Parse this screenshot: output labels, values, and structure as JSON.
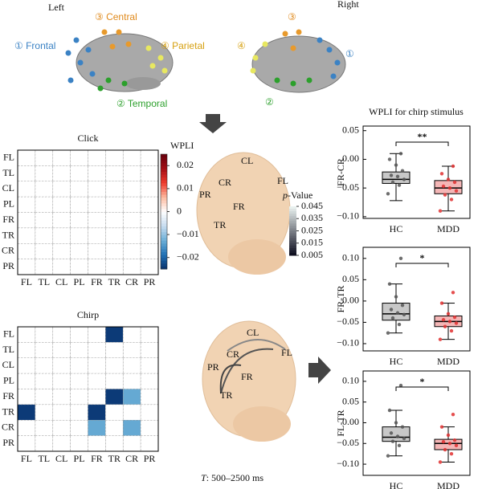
{
  "brain": {
    "left_label": "Left",
    "right_label": "Right",
    "frontal": "① Frontal",
    "temporal": "② Temporal",
    "central": "③ Central",
    "parietal": "④ Parietal",
    "right_markers": [
      "③",
      "④",
      "①",
      "②"
    ]
  },
  "heatmaps": {
    "regions": [
      "FL",
      "TL",
      "CL",
      "PL",
      "FR",
      "TR",
      "CR",
      "PR"
    ],
    "colorbar_title": "WPLI",
    "clim": [
      -0.025,
      0.025
    ],
    "colors": [
      "#08306b",
      "#2171b5",
      "#6baed6",
      "#c6dbef",
      "#ffffff",
      "#fcbba1",
      "#ef3b2c",
      "#a50f15",
      "#67000d"
    ],
    "ticks": [
      0.02,
      0.01,
      0,
      {
        "value": -0.01,
        "label": "−0.01"
      },
      {
        "value": -0.02,
        "label": "−0.02"
      }
    ],
    "panels": [
      {
        "title": "Click",
        "matrix": [
          [
            0,
            0,
            0,
            0,
            0,
            0,
            0,
            0
          ],
          [
            0,
            0,
            0,
            0,
            0,
            0,
            0,
            0
          ],
          [
            0,
            0,
            0,
            0,
            0,
            0,
            0,
            0
          ],
          [
            0,
            0,
            0,
            0,
            0,
            0,
            0,
            0
          ],
          [
            0,
            0,
            0,
            0,
            0,
            0,
            0,
            0
          ],
          [
            0,
            0,
            0,
            0,
            0,
            0,
            0,
            0
          ],
          [
            0,
            0,
            0,
            0,
            0,
            0,
            0,
            0
          ],
          [
            0,
            0,
            0,
            0,
            0,
            0,
            0,
            0
          ]
        ]
      },
      {
        "title": "Chirp",
        "matrix": [
          [
            0,
            0,
            0,
            0,
            0,
            -0.024,
            0,
            0
          ],
          [
            0,
            0,
            0,
            0,
            0,
            0,
            0,
            0
          ],
          [
            0,
            0,
            0,
            0,
            0,
            0,
            0,
            0
          ],
          [
            0,
            0,
            0,
            0,
            0,
            0,
            0,
            0
          ],
          [
            0,
            0,
            0,
            0,
            0,
            -0.024,
            -0.013,
            0
          ],
          [
            -0.024,
            0,
            0,
            0,
            -0.024,
            0,
            0,
            0
          ],
          [
            0,
            0,
            0,
            0,
            -0.013,
            0,
            -0.013,
            0
          ],
          [
            0,
            0,
            0,
            0,
            0,
            0,
            0,
            0
          ]
        ]
      }
    ]
  },
  "heads": {
    "click_labels": [
      "CL",
      "FL",
      "CR",
      "PR",
      "FR",
      "TR"
    ],
    "chirp_labels": [
      "CL",
      "FL",
      "CR",
      "PR",
      "FR",
      "TR"
    ],
    "legend_p": "p",
    "legend_rest": "-Value",
    "legend_ticks": [
      0.045,
      0.035,
      0.025,
      0.015,
      0.005
    ]
  },
  "time_window": {
    "symbol": "T",
    "text": ": 500–2500 ms"
  },
  "chart_data": [
    {
      "type": "box",
      "title": "WPLI for chirp stimulus",
      "ylabel": "FR-CR",
      "significance": "**",
      "categories": [
        "HC",
        "MDD"
      ],
      "ylim": [
        -0.103,
        0.058
      ],
      "yticks": [
        {
          "value": 0.05,
          "label": "0.05"
        },
        {
          "value": 0,
          "label": "0.00"
        },
        {
          "value": -0.05,
          "label": "−0.05"
        },
        {
          "value": -0.1,
          "label": "−0.10"
        }
      ],
      "boxes": [
        {
          "color": "#c8c8c8",
          "point_color": "#555555",
          "whislo": -0.072,
          "q1": -0.042,
          "median": -0.035,
          "q3": -0.022,
          "whishi": 0.01,
          "points": [
            -0.06,
            -0.045,
            -0.04,
            -0.035,
            -0.03,
            -0.028,
            -0.02,
            -0.01,
            0,
            0.01
          ]
        },
        {
          "color": "#f4b6b6",
          "point_color": "#e03030",
          "whislo": -0.09,
          "q1": -0.06,
          "median": -0.05,
          "q3": -0.037,
          "whishi": -0.012,
          "points": [
            -0.09,
            -0.07,
            -0.062,
            -0.055,
            -0.05,
            -0.047,
            -0.04,
            -0.035,
            -0.025,
            -0.012
          ]
        }
      ]
    },
    {
      "type": "box",
      "ylabel": "FR-TR",
      "significance": "*",
      "categories": [
        "HC",
        "MDD"
      ],
      "ylim": [
        -0.117,
        0.126
      ],
      "yticks": [
        {
          "value": 0.1,
          "label": "0.10"
        },
        {
          "value": 0.05,
          "label": "0.05"
        },
        {
          "value": 0,
          "label": "0.00"
        },
        {
          "value": -0.05,
          "label": "−0.05"
        },
        {
          "value": -0.1,
          "label": "−0.10"
        }
      ],
      "boxes": [
        {
          "color": "#c8c8c8",
          "point_color": "#555555",
          "whislo": -0.075,
          "q1": -0.045,
          "median": -0.03,
          "q3": -0.005,
          "whishi": 0.04,
          "points": [
            -0.075,
            -0.055,
            -0.04,
            -0.032,
            -0.028,
            -0.02,
            -0.01,
            0.01,
            0.04,
            0.1
          ]
        },
        {
          "color": "#f4b6b6",
          "point_color": "#e03030",
          "whislo": -0.09,
          "q1": -0.06,
          "median": -0.048,
          "q3": -0.035,
          "whishi": -0.005,
          "points": [
            -0.09,
            -0.07,
            -0.06,
            -0.052,
            -0.048,
            -0.044,
            -0.038,
            -0.03,
            -0.005,
            0.02
          ]
        }
      ]
    },
    {
      "type": "box",
      "ylabel": "FL-TR",
      "significance": "*",
      "categories": [
        "HC",
        "MDD"
      ],
      "ylim": [
        -0.127,
        0.125
      ],
      "yticks": [
        {
          "value": 0.1,
          "label": "0.10"
        },
        {
          "value": 0.05,
          "label": "0.05"
        },
        {
          "value": 0,
          "label": "0.00"
        },
        {
          "value": -0.05,
          "label": "−0.05"
        },
        {
          "value": -0.1,
          "label": "−0.10"
        }
      ],
      "boxes": [
        {
          "color": "#c8c8c8",
          "point_color": "#555555",
          "whislo": -0.08,
          "q1": -0.045,
          "median": -0.035,
          "q3": -0.01,
          "whishi": 0.03,
          "points": [
            -0.08,
            -0.055,
            -0.045,
            -0.038,
            -0.033,
            -0.025,
            -0.01,
            0,
            0.03,
            0.09
          ]
        },
        {
          "color": "#f4b6b6",
          "point_color": "#e03030",
          "whislo": -0.095,
          "q1": -0.065,
          "median": -0.05,
          "q3": -0.04,
          "whishi": -0.01,
          "points": [
            -0.095,
            -0.075,
            -0.065,
            -0.055,
            -0.05,
            -0.046,
            -0.042,
            -0.03,
            -0.01,
            0.02
          ]
        }
      ]
    }
  ]
}
